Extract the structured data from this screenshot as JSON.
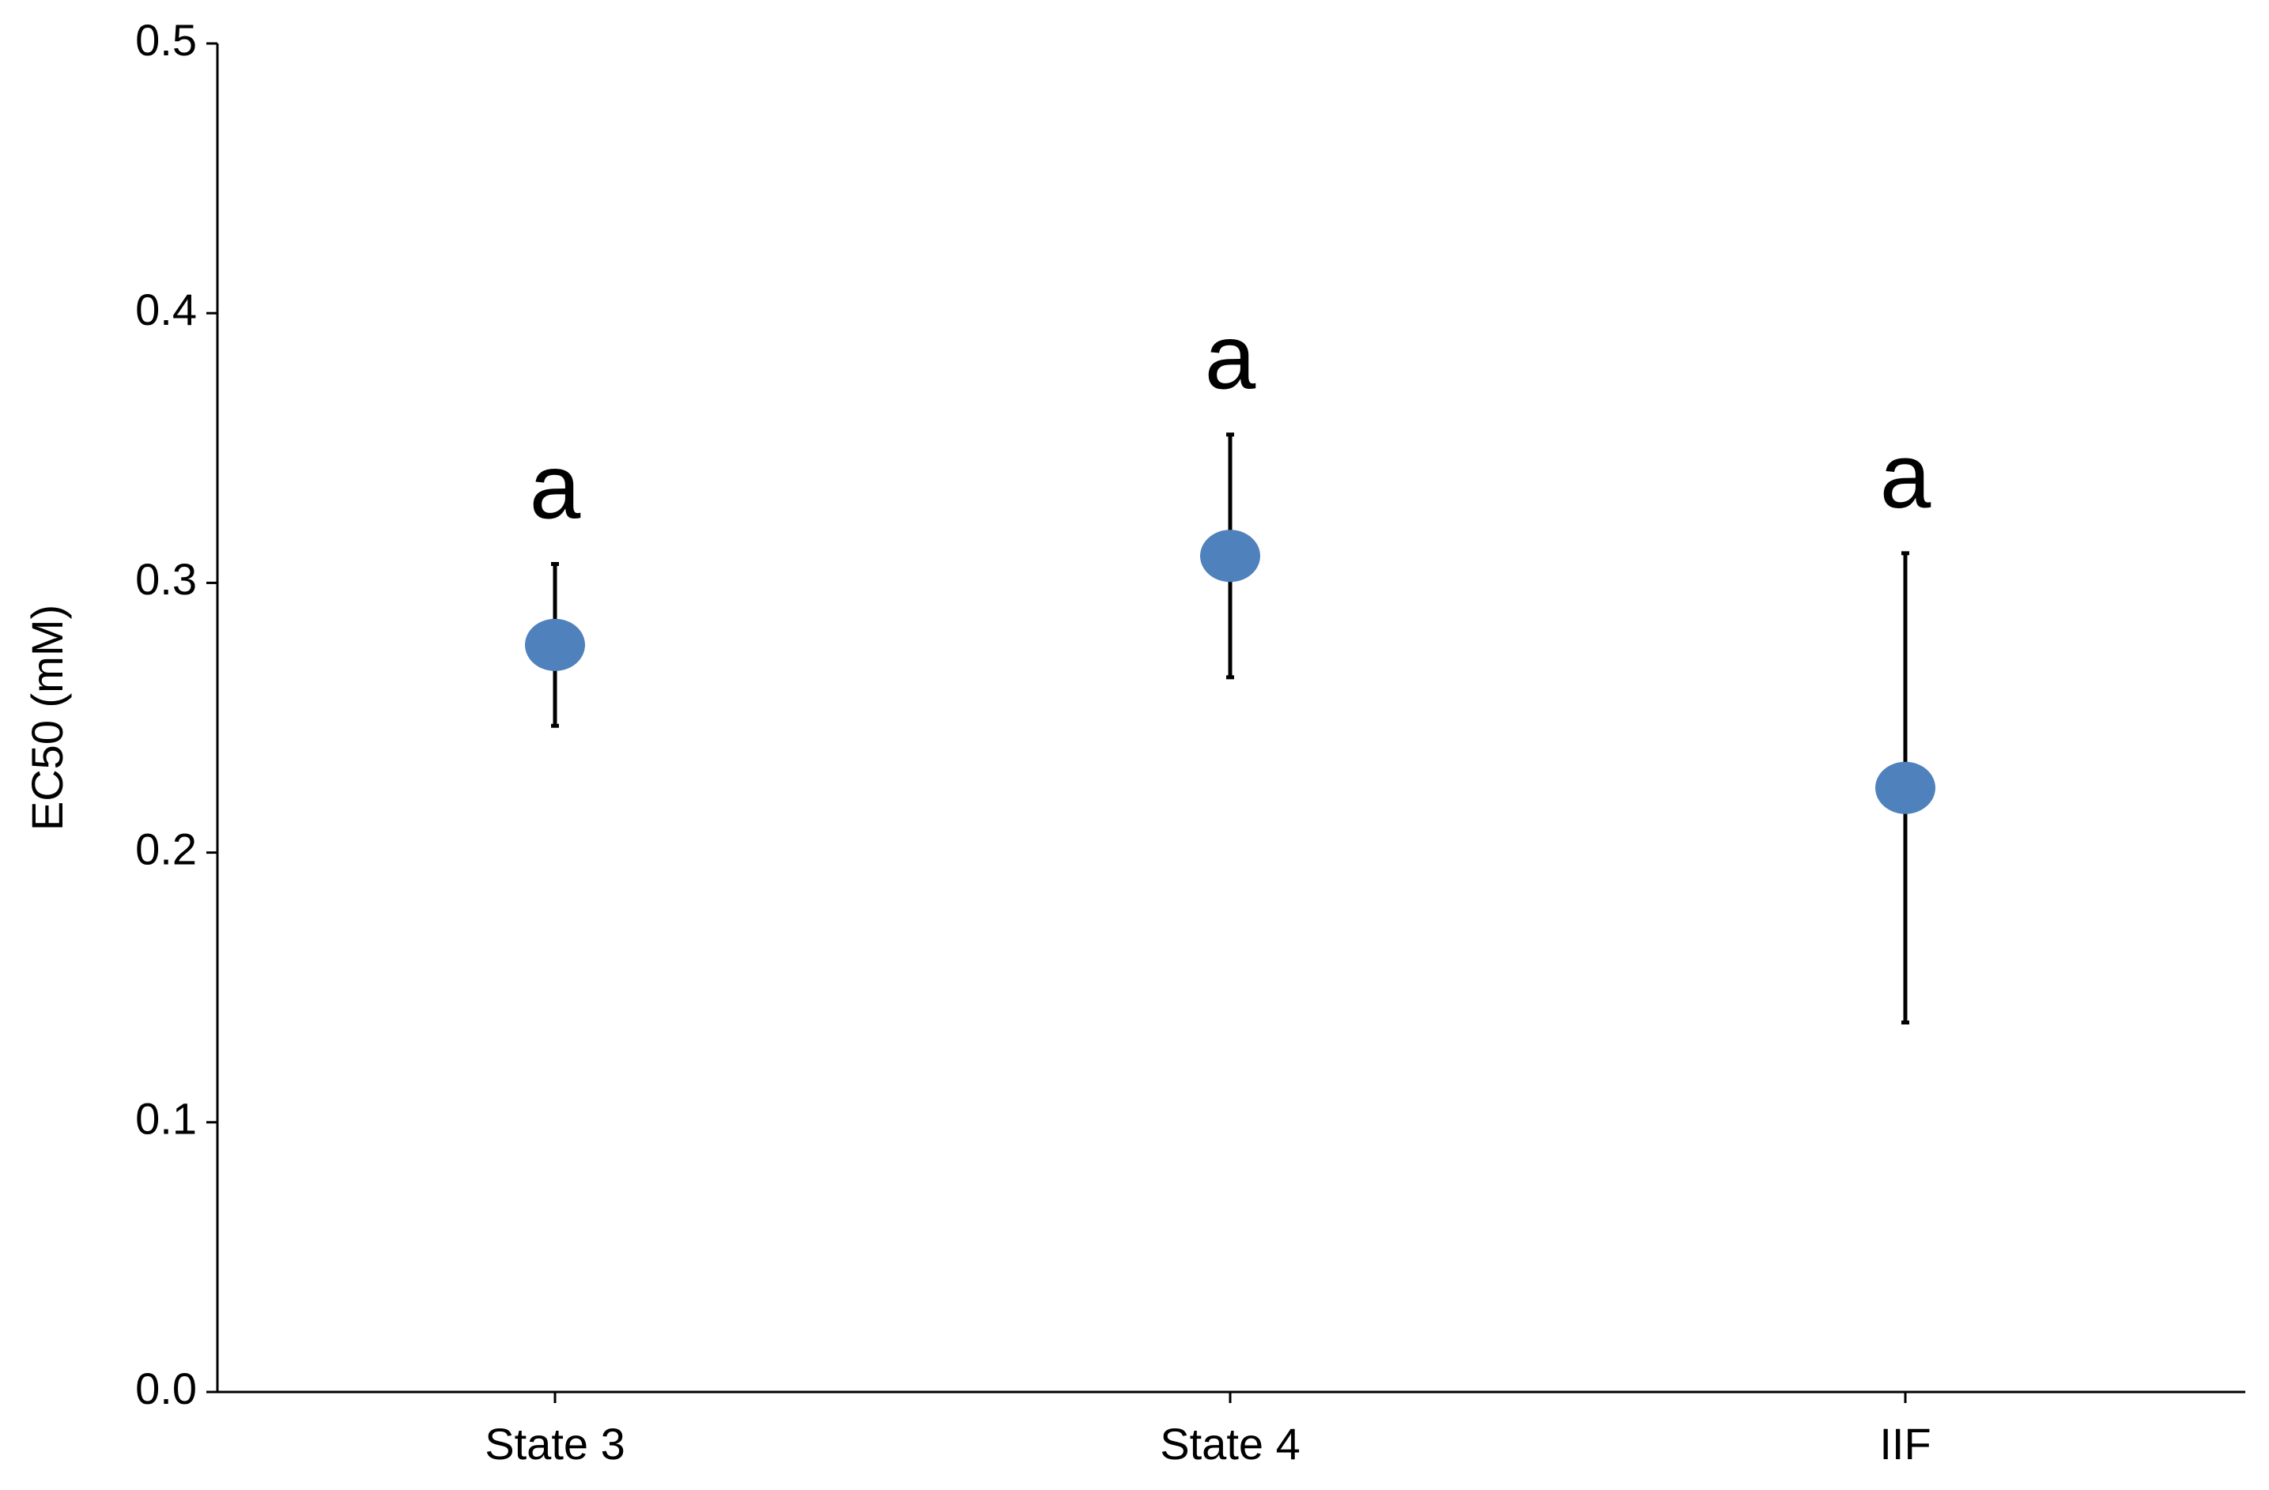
{
  "chart_data": {
    "type": "errorbar",
    "y_label": "EC50 (mM)",
    "categories": [
      "State 3",
      "State 4",
      "IIF"
    ],
    "values": [
      0.277,
      0.31,
      0.224
    ],
    "errors": [
      0.03,
      0.045,
      0.087
    ],
    "annotations": [
      "a",
      "a",
      "a"
    ],
    "color": "#4f81bd",
    "ylim": [
      0,
      0.5
    ],
    "yticks": [
      {
        "value": 0,
        "label": "0.0"
      },
      0.1,
      0.2,
      0.3,
      0.4,
      0.5
    ],
    "grid": false
  }
}
